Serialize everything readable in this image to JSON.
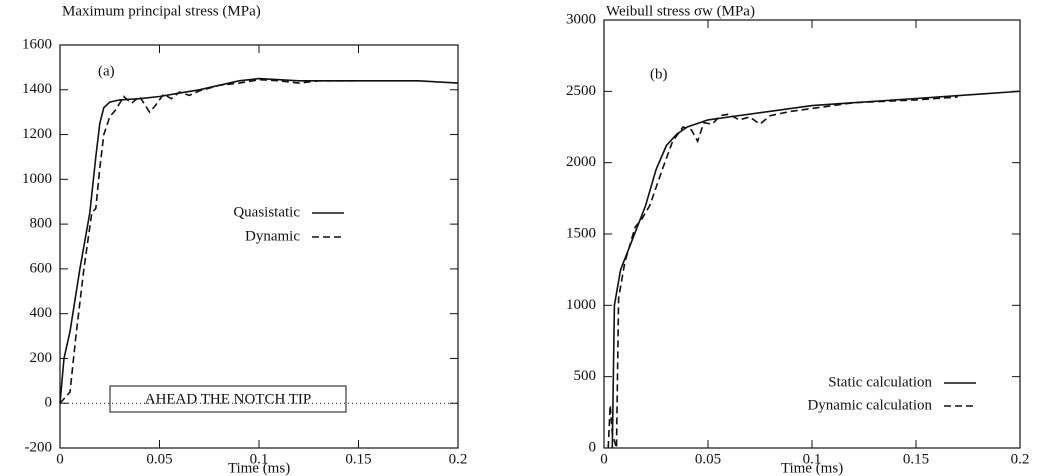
{
  "chart_data": [
    {
      "type": "line",
      "title": "Maximum principal stress (MPa)",
      "xlabel": "Time (ms)",
      "panel_label": "(a)",
      "annotation": "AHEAD THE NOTCH TIP",
      "zero_line": true,
      "legend": "center",
      "xlim": [
        0,
        0.2
      ],
      "xticks": [
        0,
        0.05,
        0.1,
        0.15,
        0.2
      ],
      "ylim": [
        -200,
        1600
      ],
      "yticks": [
        -200,
        0,
        200,
        400,
        600,
        800,
        1000,
        1200,
        1400,
        1600
      ],
      "series": [
        {
          "name": "Quasistatic",
          "color": "#111111",
          "style": "solid",
          "x": [
            0,
            0.002,
            0.005,
            0.01,
            0.015,
            0.018,
            0.02,
            0.022,
            0.025,
            0.03,
            0.04,
            0.05,
            0.06,
            0.07,
            0.08,
            0.09,
            0.1,
            0.11,
            0.12,
            0.15,
            0.18,
            0.2
          ],
          "values": [
            0,
            200,
            320,
            600,
            850,
            1100,
            1250,
            1320,
            1345,
            1355,
            1360,
            1370,
            1385,
            1400,
            1420,
            1440,
            1450,
            1445,
            1440,
            1440,
            1440,
            1430
          ]
        },
        {
          "name": "Dynamic",
          "color": "#111111",
          "style": "dashed",
          "x": [
            0,
            0.005,
            0.008,
            0.012,
            0.016,
            0.018,
            0.02,
            0.022,
            0.025,
            0.028,
            0.032,
            0.036,
            0.04,
            0.045,
            0.048,
            0.052,
            0.056,
            0.06,
            0.065,
            0.07,
            0.08,
            0.09,
            0.1,
            0.11,
            0.12,
            0.13,
            0.15
          ],
          "values": [
            0,
            50,
            300,
            600,
            850,
            870,
            1050,
            1200,
            1280,
            1310,
            1370,
            1340,
            1370,
            1300,
            1330,
            1380,
            1360,
            1390,
            1375,
            1395,
            1420,
            1430,
            1445,
            1440,
            1430,
            1440,
            1440
          ]
        }
      ]
    },
    {
      "type": "line",
      "title": "Weibull stress σw (MPa)",
      "xlabel": "Time (ms)",
      "panel_label": "(b)",
      "legend": "lower right",
      "xlim": [
        0,
        0.2
      ],
      "xticks": [
        0,
        0.05,
        0.1,
        0.15,
        0.2
      ],
      "ylim": [
        0,
        3000
      ],
      "yticks": [
        0,
        500,
        1000,
        1500,
        2000,
        2500,
        3000
      ],
      "series": [
        {
          "name": "Static calculation",
          "color": "#111111",
          "style": "solid",
          "x": [
            0.004,
            0.005,
            0.008,
            0.012,
            0.016,
            0.02,
            0.025,
            0.03,
            0.035,
            0.04,
            0.05,
            0.06,
            0.08,
            0.1,
            0.12,
            0.15,
            0.18,
            0.2
          ],
          "values": [
            0,
            1000,
            1250,
            1400,
            1550,
            1700,
            1950,
            2120,
            2200,
            2250,
            2300,
            2320,
            2360,
            2400,
            2420,
            2450,
            2480,
            2500
          ]
        },
        {
          "name": "Dynamic calculation",
          "color": "#111111",
          "style": "dashed",
          "x": [
            0.002,
            0.003,
            0.004,
            0.006,
            0.007,
            0.01,
            0.015,
            0.018,
            0.022,
            0.028,
            0.033,
            0.038,
            0.042,
            0.045,
            0.048,
            0.052,
            0.056,
            0.06,
            0.065,
            0.07,
            0.075,
            0.08,
            0.09,
            0.1,
            0.12,
            0.15,
            0.17
          ],
          "values": [
            0,
            300,
            100,
            0,
            1050,
            1300,
            1550,
            1600,
            1700,
            1950,
            2150,
            2250,
            2230,
            2150,
            2280,
            2270,
            2330,
            2340,
            2300,
            2320,
            2270,
            2330,
            2360,
            2380,
            2420,
            2440,
            2460
          ]
        }
      ]
    }
  ]
}
